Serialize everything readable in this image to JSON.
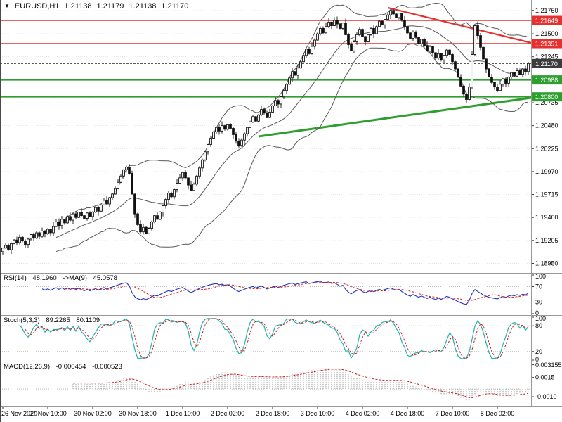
{
  "header": {
    "symbol": "EURUSD,H1",
    "open": "1.21138",
    "high": "1.21179",
    "low": "1.21138",
    "close": "1.21170"
  },
  "colors": {
    "resistance": "#e53030",
    "support": "#2e9e2e",
    "current": "#3c3c3c",
    "candle": "#111111",
    "bollinger": "#5a5a5a",
    "rsi_line": "#2233bb",
    "rsi_ma": "#cc2222",
    "stoch_k": "#20b2aa",
    "stoch_d": "#cc2222",
    "macd_hist": "#9a9a9a",
    "macd_signal": "#cc2222",
    "grid": "#e6e6e6",
    "separator": "#989898",
    "axis_text": "#000000"
  },
  "chart_data": {
    "type": "candlestick",
    "symbol": "EURUSD",
    "timeframe": "H1",
    "y_range": [
      1.1886,
      1.2186
    ],
    "open_first": 1.1908,
    "label_step": 16,
    "time_labels": [
      "26 Nov 2020",
      "27 Nov 10:00",
      "30 Nov 02:00",
      "30 Nov 18:00",
      "1 Dec 10:00",
      "2 Dec 02:00",
      "2 Dec 18:00",
      "3 Dec 10:00",
      "4 Dec 02:00",
      "4 Dec 18:00",
      "7 Dec 10:00",
      "8 Dec 02:00"
    ],
    "price_axis_ticks": [
      "1.21760",
      "1.21500",
      "1.21245",
      "1.20735",
      "1.20480",
      "1.20225",
      "1.19970",
      "1.19715",
      "1.19460",
      "1.19205",
      "1.18950"
    ],
    "closes": [
      1.1912,
      1.1915,
      1.191,
      1.1917,
      1.1921,
      1.1918,
      1.1924,
      1.192,
      1.1916,
      1.1922,
      1.1927,
      1.1923,
      1.1929,
      1.1925,
      1.1931,
      1.1928,
      1.1933,
      1.1929,
      1.1936,
      1.1941,
      1.1937,
      1.1944,
      1.194,
      1.1947,
      1.1943,
      1.195,
      1.1946,
      1.1952,
      1.1948,
      1.1945,
      1.1951,
      1.1947,
      1.1952,
      1.1957,
      1.1953,
      1.196,
      1.1965,
      1.1961,
      1.1968,
      1.1972,
      1.1978,
      1.1985,
      1.1992,
      1.1999,
      1.2002,
      1.1995,
      1.1972,
      1.195,
      1.1938,
      1.193,
      1.1935,
      1.1928,
      1.1934,
      1.1941,
      1.1948,
      1.1944,
      1.1952,
      1.1959,
      1.1966,
      1.1973,
      1.1969,
      1.1977,
      1.1984,
      1.199,
      1.1996,
      1.199,
      1.1982,
      1.1976,
      1.1983,
      1.1992,
      1.2001,
      1.201,
      1.2019,
      1.2027,
      1.2034,
      1.2041,
      1.2046,
      1.2042,
      1.2048,
      1.2044,
      1.2049,
      1.2045,
      1.2038,
      1.2031,
      1.2026,
      1.2032,
      1.2039,
      1.2046,
      1.2052,
      1.2058,
      1.2053,
      1.206,
      1.2066,
      1.2062,
      1.2057,
      1.2063,
      1.207,
      1.2076,
      1.2072,
      1.208,
      1.2087,
      1.2094,
      1.2101,
      1.2108,
      1.2104,
      1.2112,
      1.2119,
      1.2126,
      1.2133,
      1.2128,
      1.2136,
      1.2143,
      1.215,
      1.2156,
      1.2151,
      1.2158,
      1.2163,
      1.2159,
      1.2165,
      1.2161,
      1.2156,
      1.2162,
      1.2149,
      1.2138,
      1.2131,
      1.2141,
      1.2149,
      1.2155,
      1.2147,
      1.2141,
      1.2149,
      1.2156,
      1.215,
      1.2158,
      1.2164,
      1.216,
      1.2166,
      1.2171,
      1.2176,
      1.2172,
      1.2168,
      1.2173,
      1.2165,
      1.2158,
      1.2151,
      1.2145,
      1.2152,
      1.2146,
      1.2139,
      1.2144,
      1.2137,
      1.2131,
      1.2136,
      1.2129,
      1.2123,
      1.2128,
      1.2121,
      1.2126,
      1.2132,
      1.2127,
      1.2119,
      1.2111,
      1.2102,
      1.2092,
      1.2083,
      1.2077,
      1.2091,
      1.2127,
      1.2159,
      1.2148,
      1.2135,
      1.2122,
      1.2111,
      1.2102,
      1.2096,
      1.2091,
      1.2087,
      1.2094,
      1.21,
      1.2095,
      1.2102,
      1.2107,
      1.2103,
      1.2109,
      1.2105,
      1.2111,
      1.2108,
      1.2117
    ],
    "bollinger": {
      "period": 20,
      "deviation": 2
    },
    "h_lines": [
      {
        "price": 1.21649,
        "label": "1.21649",
        "color": "#e53030",
        "width": 1.6
      },
      {
        "price": 1.21391,
        "label": "1.21391",
        "color": "#e53030",
        "width": 1.6
      },
      {
        "price": 1.20988,
        "label": "1.20988",
        "color": "#2e9e2e",
        "width": 2
      },
      {
        "price": 1.208,
        "label": "1.20800",
        "color": "#2e9e2e",
        "width": 2
      }
    ],
    "current_price": {
      "value": 1.2117,
      "label": "1.21170"
    },
    "trend_lines": [
      {
        "i1": 137,
        "p1": 1.2179,
        "i2": 189,
        "p2": 1.214,
        "color": "#e53030",
        "width": 2.2
      },
      {
        "i1": 91,
        "p1": 1.2036,
        "i2": 189,
        "p2": 1.2079,
        "color": "#2e9e2e",
        "width": 3
      }
    ],
    "panels": [
      {
        "title": "RSI(14)",
        "value": "48.1960",
        "ma_title": "->MA(9)",
        "ma_value": "45.0578",
        "range": [
          0,
          100
        ],
        "levels": [
          100,
          70,
          30,
          0
        ],
        "dotted": [
          70,
          30
        ]
      },
      {
        "title": "Stoch(5,3,3)",
        "value": "89.2265",
        "value2": "80.1109",
        "range": [
          0,
          100
        ],
        "levels": [
          100,
          80,
          20,
          0
        ],
        "dotted": [
          80,
          20
        ]
      },
      {
        "title": "MACD(12,26,9)",
        "value": "-0.000454",
        "value2": "-0.000523",
        "range": [
          -0.002,
          0.0033
        ],
        "levels_labels": [
          "0.003155",
          "0.0015",
          "-0.0010"
        ],
        "dotted": [
          0
        ]
      }
    ]
  }
}
